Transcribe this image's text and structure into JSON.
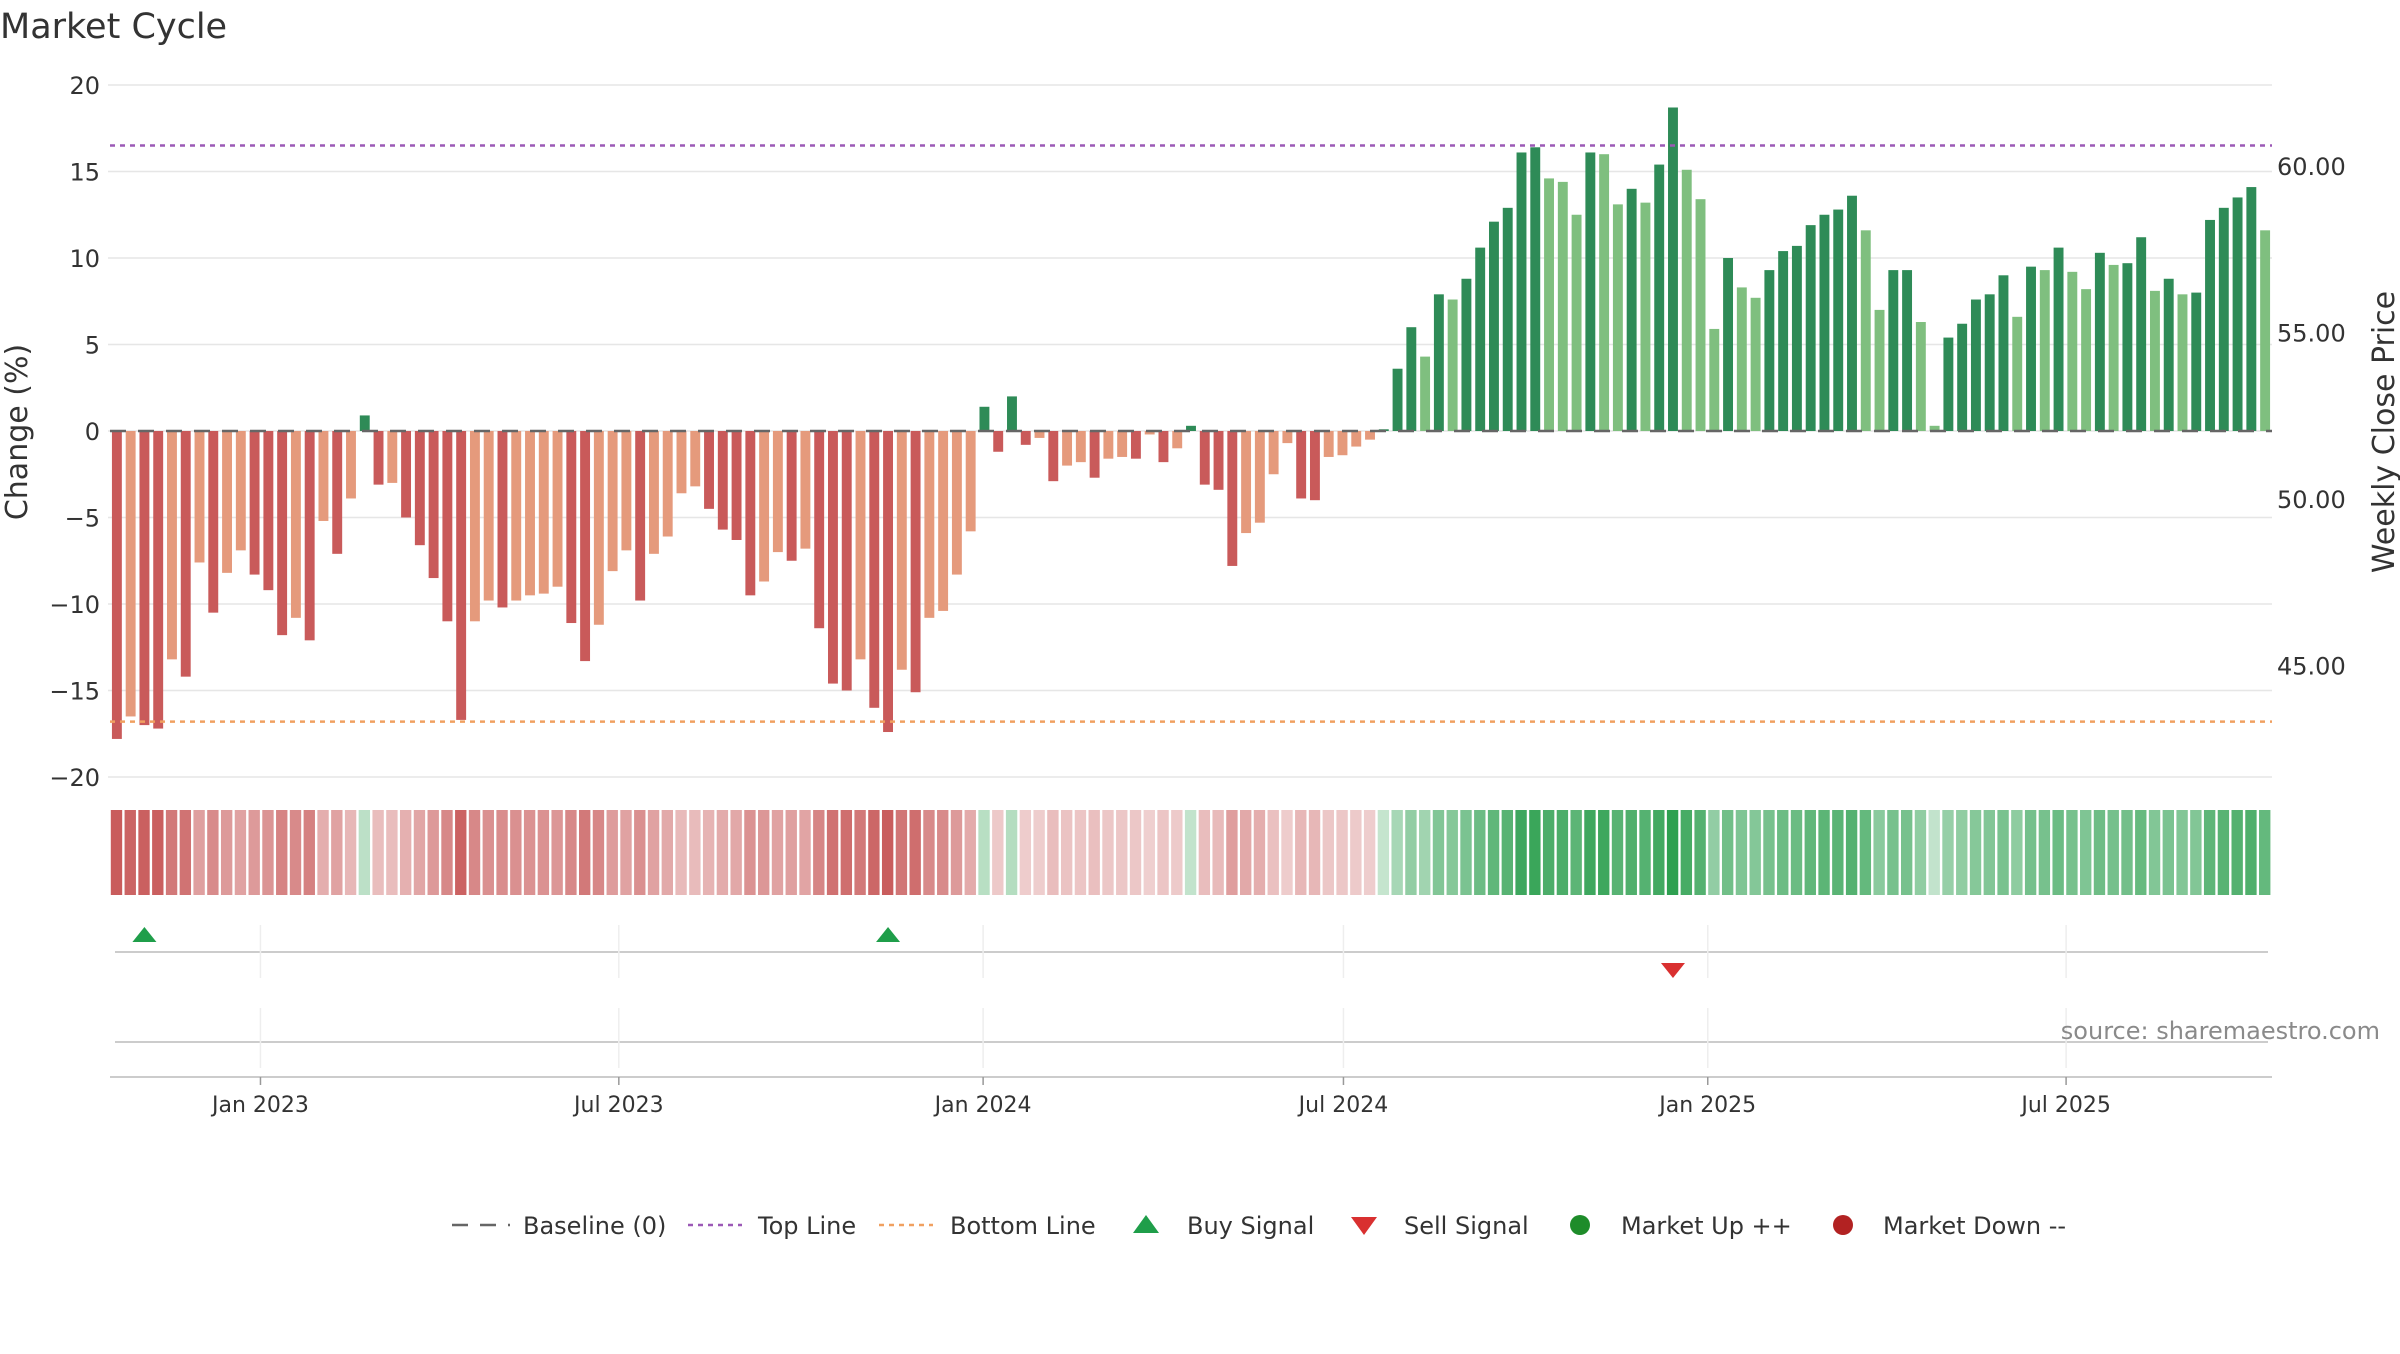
{
  "chart_data": {
    "type": "bar",
    "title": "Market Cycle",
    "ylabel": "Change (%)",
    "y2label": "Weekly Close Price",
    "ylim": [
      -20,
      20
    ],
    "yticks": [
      20,
      15,
      10,
      5,
      0,
      -5,
      -10,
      -15,
      -20
    ],
    "y2ticks": [
      "60.00",
      "55.00",
      "50.00",
      "45.00"
    ],
    "top_line": 16.5,
    "bottom_line": -16.8,
    "x_start": "2022-10-17",
    "x_end": "2025-10-13",
    "xticks": [
      {
        "label": "Jan 2023",
        "date": "2023-01-01"
      },
      {
        "label": "Jul 2023",
        "date": "2023-07-01"
      },
      {
        "label": "Jan 2024",
        "date": "2024-01-01"
      },
      {
        "label": "Jul 2024",
        "date": "2024-07-01"
      },
      {
        "label": "Jan 2025",
        "date": "2025-01-01"
      },
      {
        "label": "Jul 2025",
        "date": "2025-07-01"
      }
    ],
    "values": [
      -17.8,
      -16.5,
      -17.0,
      -17.2,
      -13.2,
      -14.2,
      -7.6,
      -10.5,
      -8.2,
      -6.9,
      -8.3,
      -9.2,
      -11.8,
      -10.8,
      -12.1,
      -5.2,
      -7.1,
      -3.9,
      0.9,
      -3.1,
      -3.0,
      -5.0,
      -6.6,
      -8.5,
      -11.0,
      -16.7,
      -11.0,
      -9.8,
      -10.2,
      -9.8,
      -9.5,
      -9.4,
      -9.0,
      -11.1,
      -13.3,
      -11.2,
      -8.1,
      -6.9,
      -9.8,
      -7.1,
      -6.1,
      -3.6,
      -3.2,
      -4.5,
      -5.7,
      -6.3,
      -9.5,
      -8.7,
      -7.0,
      -7.5,
      -6.8,
      -11.4,
      -14.6,
      -15.0,
      -13.2,
      -16.0,
      -17.4,
      -13.8,
      -15.1,
      -10.8,
      -10.4,
      -8.3,
      -5.8,
      1.4,
      -1.2,
      2.0,
      -0.8,
      -0.4,
      -2.9,
      -2.0,
      -1.8,
      -2.7,
      -1.6,
      -1.5,
      -1.6,
      -0.2,
      -1.8,
      -1.0,
      0.3,
      -3.1,
      -3.4,
      -7.8,
      -5.9,
      -5.3,
      -2.5,
      -0.7,
      -3.9,
      -4.0,
      -1.5,
      -1.4,
      -0.9,
      -0.5,
      0.1,
      3.6,
      6.0,
      4.3,
      7.9,
      7.6,
      8.8,
      10.6,
      12.1,
      12.9,
      16.1,
      16.4,
      14.6,
      14.4,
      12.5,
      16.1,
      16.0,
      13.1,
      14.0,
      13.2,
      15.4,
      18.7,
      15.1,
      13.4,
      5.9,
      10.0,
      8.3,
      7.7,
      9.3,
      10.4,
      10.7,
      11.9,
      12.5,
      12.8,
      13.6,
      11.6,
      7.0,
      9.3,
      9.3,
      6.3,
      0.3,
      5.4,
      6.2,
      7.6,
      7.9,
      9.0,
      6.6,
      9.5,
      9.3,
      10.6,
      9.2,
      8.2,
      10.3,
      9.6,
      9.7,
      11.2,
      8.1,
      8.8,
      7.9,
      8.0,
      12.2,
      12.9,
      13.5,
      14.1,
      11.6
    ],
    "buy_signals": [
      2,
      56
    ],
    "sell_signals": [
      113
    ],
    "legend": [
      "Baseline (0)",
      "Top Line",
      "Bottom Line",
      "Buy Signal",
      "Sell Signal",
      "Market Up ++",
      "Market Down --"
    ],
    "legend_position": "bottom-center",
    "source": "source: sharemaestro.com",
    "colors": {
      "strong_up": "#2e8b57",
      "weak_up": "#7fbf7f",
      "strong_down": "#c95a5a",
      "weak_down": "#e59a7c",
      "top_line": "#9b59b6",
      "bottom_line": "#f0a060",
      "buy": "#1f9e4a",
      "sell": "#d93030",
      "market_up": "#1e8c2a",
      "market_down": "#b22222"
    }
  }
}
